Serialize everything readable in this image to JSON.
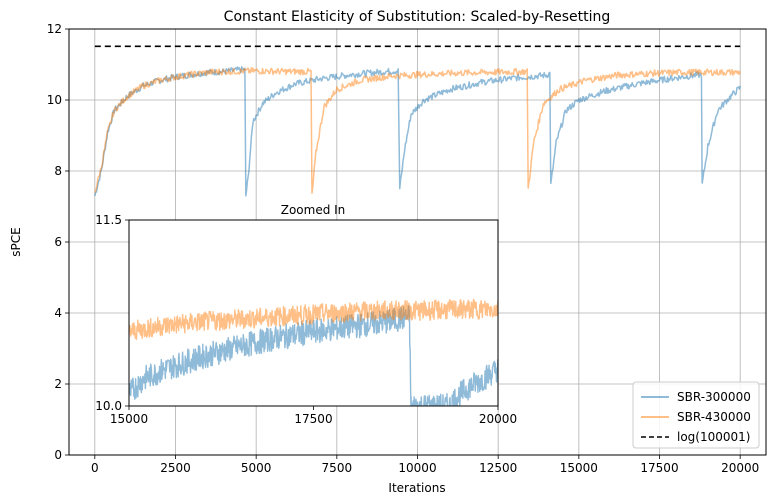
{
  "chart_data": [
    {
      "type": "line",
      "title": "Constant Elasticity of Substitution: Scaled-by-Resetting",
      "xlabel": "Iterations",
      "ylabel": "sPCE",
      "xlim": [
        -800,
        20800
      ],
      "ylim": [
        0,
        12
      ],
      "xticks": [
        0,
        2500,
        5000,
        7500,
        10000,
        12500,
        15000,
        17500,
        20000
      ],
      "yticks": [
        0,
        2,
        4,
        6,
        8,
        10,
        12
      ],
      "grid": true,
      "legend_position": "lower-right",
      "series": [
        {
          "name": "SBR-300000",
          "color": "#1f77b4",
          "alpha": 0.5,
          "points": [
            [
              0,
              7.3
            ],
            [
              200,
              8.0
            ],
            [
              400,
              9.1
            ],
            [
              600,
              9.7
            ],
            [
              1000,
              10.1
            ],
            [
              1500,
              10.4
            ],
            [
              2000,
              10.55
            ],
            [
              2500,
              10.65
            ],
            [
              3000,
              10.72
            ],
            [
              3500,
              10.78
            ],
            [
              4000,
              10.8
            ],
            [
              4500,
              10.85
            ],
            [
              4650,
              10.85
            ],
            [
              4680,
              7.3
            ],
            [
              4750,
              7.8
            ],
            [
              4900,
              9.4
            ],
            [
              5200,
              9.9
            ],
            [
              5600,
              10.2
            ],
            [
              6200,
              10.45
            ],
            [
              7000,
              10.6
            ],
            [
              8000,
              10.72
            ],
            [
              9000,
              10.8
            ],
            [
              9400,
              10.82
            ],
            [
              9450,
              7.5
            ],
            [
              9600,
              8.6
            ],
            [
              9800,
              9.6
            ],
            [
              10200,
              10.0
            ],
            [
              11000,
              10.3
            ],
            [
              12000,
              10.5
            ],
            [
              13000,
              10.62
            ],
            [
              14000,
              10.7
            ],
            [
              14100,
              10.75
            ],
            [
              14130,
              7.6
            ],
            [
              14300,
              8.8
            ],
            [
              14600,
              9.7
            ],
            [
              15000,
              10.0
            ],
            [
              15800,
              10.25
            ],
            [
              16800,
              10.45
            ],
            [
              17800,
              10.6
            ],
            [
              18800,
              10.72
            ],
            [
              18820,
              7.6
            ],
            [
              19000,
              8.7
            ],
            [
              19300,
              9.7
            ],
            [
              19700,
              10.1
            ],
            [
              20000,
              10.35
            ]
          ]
        },
        {
          "name": "SBR-430000",
          "color": "#ff7f0e",
          "alpha": 0.5,
          "points": [
            [
              0,
              7.4
            ],
            [
              200,
              8.1
            ],
            [
              400,
              9.1
            ],
            [
              600,
              9.7
            ],
            [
              1000,
              10.1
            ],
            [
              1500,
              10.4
            ],
            [
              2000,
              10.55
            ],
            [
              2500,
              10.65
            ],
            [
              3000,
              10.72
            ],
            [
              3500,
              10.78
            ],
            [
              4000,
              10.8
            ],
            [
              5000,
              10.82
            ],
            [
              6000,
              10.8
            ],
            [
              6700,
              10.8
            ],
            [
              6730,
              7.3
            ],
            [
              6850,
              8.5
            ],
            [
              7100,
              9.8
            ],
            [
              7500,
              10.3
            ],
            [
              8200,
              10.55
            ],
            [
              9200,
              10.68
            ],
            [
              10200,
              10.72
            ],
            [
              11200,
              10.76
            ],
            [
              12200,
              10.78
            ],
            [
              13400,
              10.8
            ],
            [
              13430,
              7.5
            ],
            [
              13600,
              8.8
            ],
            [
              13900,
              9.9
            ],
            [
              14400,
              10.3
            ],
            [
              15200,
              10.55
            ],
            [
              16200,
              10.7
            ],
            [
              17200,
              10.75
            ],
            [
              18200,
              10.78
            ],
            [
              19200,
              10.78
            ],
            [
              20000,
              10.78
            ]
          ]
        },
        {
          "name": "log(100001)",
          "color": "#000000",
          "style": "dashed",
          "points": [
            [
              0,
              11.513
            ],
            [
              20000,
              11.513
            ]
          ]
        }
      ]
    },
    {
      "type": "line",
      "title": "Zoomed In",
      "xlim": [
        15000,
        20000
      ],
      "ylim": [
        10.0,
        11.5
      ],
      "xticks": [
        15000,
        17500,
        20000
      ],
      "yticks": [
        10.0,
        11.5
      ],
      "series": [
        {
          "name": "SBR-300000",
          "color": "#1f77b4",
          "alpha": 0.5,
          "points": [
            [
              15000,
              10.1
            ],
            [
              15200,
              10.22
            ],
            [
              15500,
              10.3
            ],
            [
              16000,
              10.4
            ],
            [
              16500,
              10.48
            ],
            [
              17000,
              10.55
            ],
            [
              17500,
              10.6
            ],
            [
              18000,
              10.64
            ],
            [
              18500,
              10.68
            ],
            [
              18800,
              10.72
            ],
            [
              18820,
              10.0
            ],
            [
              19360,
              10.0
            ],
            [
              19400,
              10.05
            ],
            [
              19600,
              10.15
            ],
            [
              19800,
              10.22
            ],
            [
              20000,
              10.3
            ]
          ]
        },
        {
          "name": "SBR-430000",
          "color": "#ff7f0e",
          "alpha": 0.5,
          "points": [
            [
              15000,
              10.6
            ],
            [
              15500,
              10.65
            ],
            [
              16000,
              10.68
            ],
            [
              16500,
              10.7
            ],
            [
              17000,
              10.72
            ],
            [
              17500,
              10.74
            ],
            [
              18000,
              10.76
            ],
            [
              18500,
              10.77
            ],
            [
              19000,
              10.77
            ],
            [
              19500,
              10.78
            ],
            [
              20000,
              10.78
            ]
          ]
        }
      ]
    }
  ]
}
